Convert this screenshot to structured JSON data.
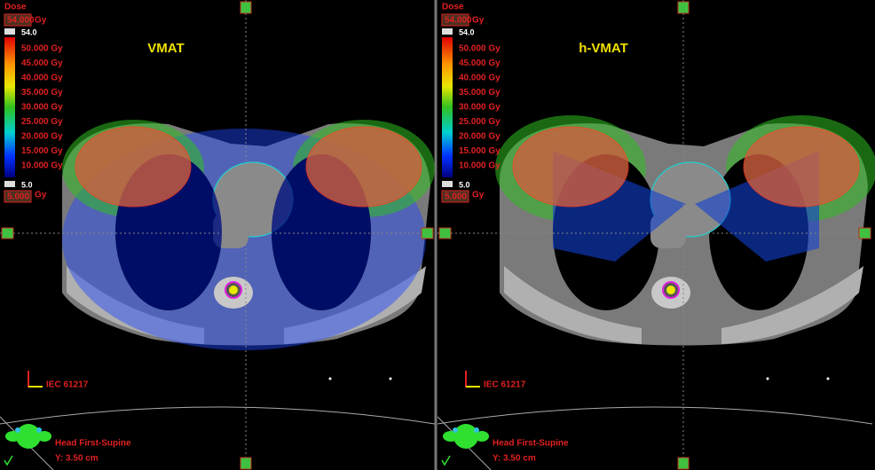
{
  "panels": [
    {
      "title": "VMAT",
      "dose_caption": "Dose",
      "dose_max": "54.000",
      "dose_max_unit": "Gy",
      "bar_max": "54.0",
      "legend": [
        "50.000 Gy",
        "45.000 Gy",
        "40.000 Gy",
        "35.000 Gy",
        "30.000 Gy",
        "25.000 Gy",
        "20.000 Gy",
        "15.000 Gy",
        "10.000 Gy"
      ],
      "bar_min": "5.0",
      "dose_min": "5.000",
      "dose_min_unit": "Gy",
      "coordinate_system": "IEC 61217",
      "orientation": "Head First-Supine",
      "position": "Y: 3.50 cm"
    },
    {
      "title": "h-VMAT",
      "dose_caption": "Dose",
      "dose_max": "54.000",
      "dose_max_unit": "Gy",
      "bar_max": "54.0",
      "legend": [
        "50.000 Gy",
        "45.000 Gy",
        "40.000 Gy",
        "35.000 Gy",
        "30.000 Gy",
        "25.000 Gy",
        "20.000 Gy",
        "15.000 Gy",
        "10.000 Gy"
      ],
      "bar_min": "5.0",
      "dose_min": "5.000",
      "dose_min_unit": "Gy",
      "coordinate_system": "IEC 61217",
      "orientation": "Head First-Supine",
      "position": "Y: 3.50 cm"
    }
  ]
}
